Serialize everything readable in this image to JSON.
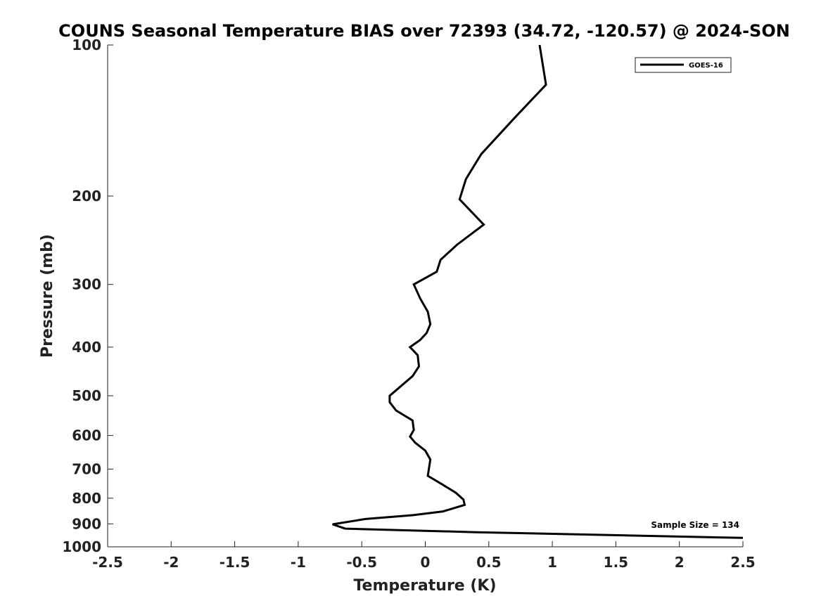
{
  "chart_data": {
    "type": "line",
    "title": "COUNS Seasonal Temperature BIAS over 72393 (34.72, -120.57) @ 2024-SON",
    "xlabel": "Temperature (K)",
    "ylabel": "Pressure (mb)",
    "xlim": [
      -2.5,
      2.5
    ],
    "ylim": [
      100,
      1000
    ],
    "y_scale": "log",
    "y_reversed": true,
    "x_ticks": [
      "-2.5",
      "-2",
      "-1.5",
      "-1",
      "-0.5",
      "0",
      "0.5",
      "1",
      "1.5",
      "2",
      "2.5"
    ],
    "x_tick_values": [
      -2.5,
      -2,
      -1.5,
      -1,
      -0.5,
      0,
      0.5,
      1,
      1.5,
      2,
      2.5
    ],
    "y_ticks": [
      "100",
      "200",
      "300",
      "400",
      "500",
      "600",
      "700",
      "800",
      "900",
      "1000"
    ],
    "y_tick_values": [
      100,
      200,
      300,
      400,
      500,
      600,
      700,
      800,
      900,
      1000
    ],
    "grid": false,
    "legend_position": "top-right",
    "series": [
      {
        "name": "GOES-16",
        "color": "#000000",
        "points": [
          {
            "x": 0.9,
            "p": 100
          },
          {
            "x": 0.95,
            "p": 120
          },
          {
            "x": 0.7,
            "p": 140
          },
          {
            "x": 0.44,
            "p": 165
          },
          {
            "x": 0.32,
            "p": 185
          },
          {
            "x": 0.27,
            "p": 203
          },
          {
            "x": 0.46,
            "p": 228
          },
          {
            "x": 0.25,
            "p": 250
          },
          {
            "x": 0.12,
            "p": 268
          },
          {
            "x": 0.09,
            "p": 283
          },
          {
            "x": -0.09,
            "p": 300
          },
          {
            "x": -0.04,
            "p": 320
          },
          {
            "x": 0.02,
            "p": 340
          },
          {
            "x": 0.04,
            "p": 360
          },
          {
            "x": 0.01,
            "p": 375
          },
          {
            "x": -0.04,
            "p": 387
          },
          {
            "x": -0.12,
            "p": 400
          },
          {
            "x": -0.06,
            "p": 415
          },
          {
            "x": -0.05,
            "p": 437
          },
          {
            "x": -0.1,
            "p": 457
          },
          {
            "x": -0.28,
            "p": 500
          },
          {
            "x": -0.28,
            "p": 515
          },
          {
            "x": -0.23,
            "p": 535
          },
          {
            "x": -0.1,
            "p": 560
          },
          {
            "x": -0.09,
            "p": 585
          },
          {
            "x": -0.12,
            "p": 603
          },
          {
            "x": -0.08,
            "p": 620
          },
          {
            "x": 0.0,
            "p": 643
          },
          {
            "x": 0.04,
            "p": 670
          },
          {
            "x": 0.02,
            "p": 722
          },
          {
            "x": 0.13,
            "p": 750
          },
          {
            "x": 0.24,
            "p": 780
          },
          {
            "x": 0.3,
            "p": 805
          },
          {
            "x": 0.31,
            "p": 825
          },
          {
            "x": 0.14,
            "p": 850
          },
          {
            "x": -0.1,
            "p": 865
          },
          {
            "x": -0.47,
            "p": 880
          },
          {
            "x": -0.73,
            "p": 902
          },
          {
            "x": -0.63,
            "p": 920
          },
          {
            "x": 0.4,
            "p": 935
          },
          {
            "x": 2.5,
            "p": 960
          }
        ]
      }
    ],
    "annotations": [
      {
        "text": "Sample Size = 134"
      }
    ]
  }
}
